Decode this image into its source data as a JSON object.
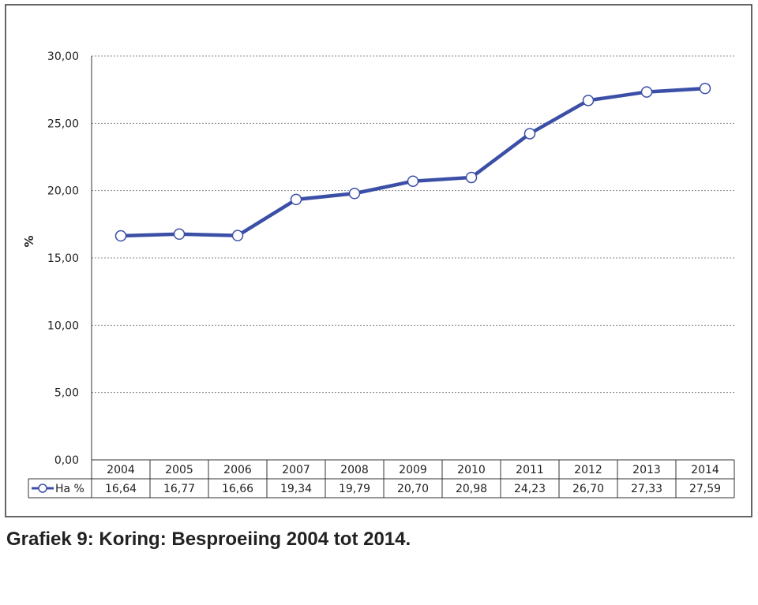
{
  "caption": "Grafiek 9: Koring: Besproeiing 2004 tot 2014.",
  "colors": {
    "series_line": "#3b4fa6",
    "marker_fill": "#ffffff",
    "frame": "#333333",
    "grid": "#888888",
    "text": "#222222"
  },
  "chart_data": {
    "type": "line",
    "title": "",
    "xlabel": "",
    "ylabel": "%",
    "ylim": [
      0,
      30
    ],
    "yticks": [
      "0,00",
      "5,00",
      "10,00",
      "15,00",
      "20,00",
      "25,00",
      "30,00"
    ],
    "ytick_values": [
      0,
      5,
      10,
      15,
      20,
      25,
      30
    ],
    "grid": "horizontal dashed",
    "categories": [
      "2004",
      "2005",
      "2006",
      "2007",
      "2008",
      "2009",
      "2010",
      "2011",
      "2012",
      "2013",
      "2014"
    ],
    "series": [
      {
        "name": "Ha %",
        "values": [
          16.64,
          16.77,
          16.66,
          19.34,
          19.79,
          20.7,
          20.98,
          24.23,
          26.7,
          27.33,
          27.59
        ],
        "value_labels": [
          "16,64",
          "16,77",
          "16,66",
          "19,34",
          "19,79",
          "20,70",
          "20,98",
          "24,23",
          "26,70",
          "27,33",
          "27,59"
        ]
      }
    ],
    "legend": "data-table-left"
  }
}
